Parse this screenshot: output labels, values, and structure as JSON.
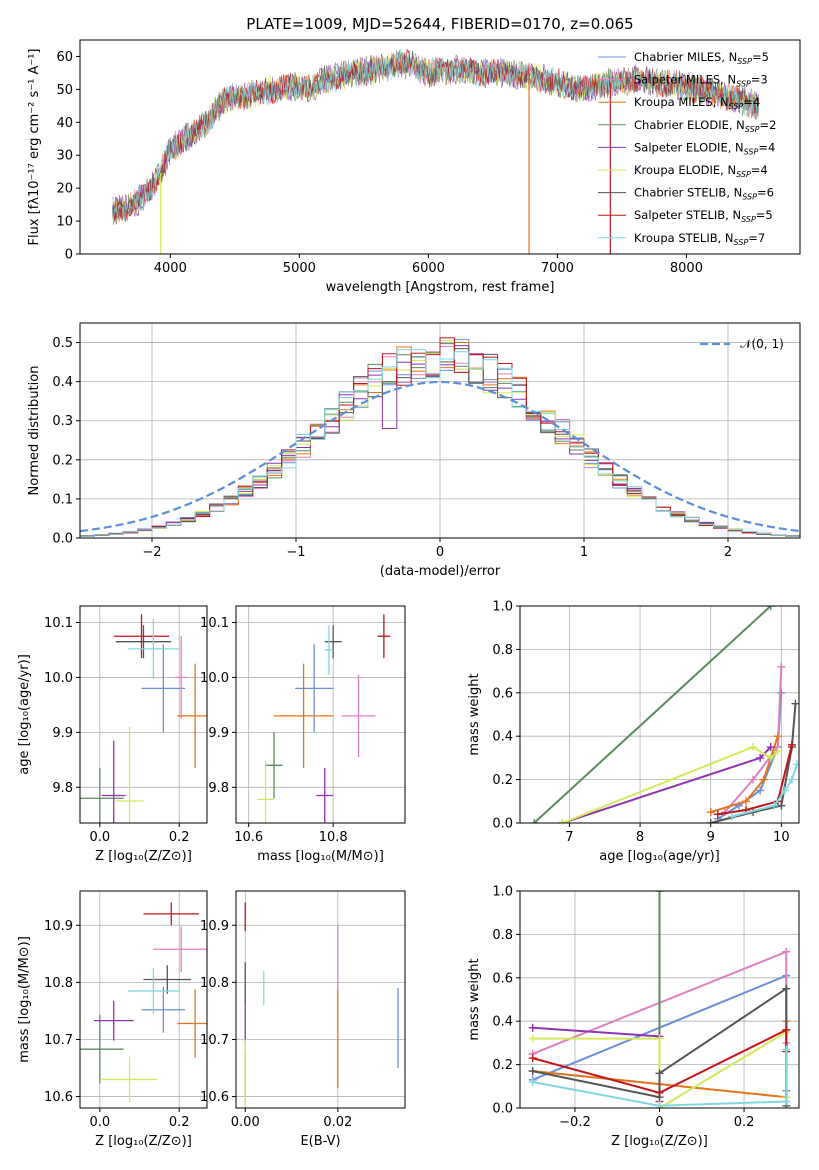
{
  "figure_title": "PLATE=1009, MJD=52644, FIBERID=0170, z=0.065",
  "colors": {
    "Chabrier MILES": "#6a8fd8",
    "Salpeter MILES": "#e07fbf",
    "Kroupa MILES": "#e6741c",
    "Chabrier ELODIE": "#5c8a5c",
    "Salpeter ELODIE": "#9033b0",
    "Kroupa ELODIE": "#d2ea5a",
    "Chabrier STELIB": "#555555",
    "Salpeter STELIB": "#c0161b",
    "Kroupa STELIB": "#7fd8e0",
    "grid": "#b0b0b0",
    "normal_curve": "#5b8fd8"
  },
  "chart_data": [
    {
      "type": "line",
      "title": "PLATE=1009, MJD=52644, FIBERID=0170, z=0.065",
      "xlabel": "wavelength [Angstrom, rest frame]",
      "ylabel": "Flux [fλ10⁻¹⁷ erg cm⁻² s⁻¹ A⁻¹]",
      "xlim": [
        3300,
        8880
      ],
      "ylim": [
        0,
        65
      ],
      "xticks": [
        4000,
        5000,
        6000,
        7000,
        8000
      ],
      "yticks": [
        0,
        10,
        20,
        30,
        40,
        50,
        60
      ],
      "grid": false,
      "legend_position": "top-right",
      "legend": [
        {
          "model": "Chabrier MILES",
          "label": "Chabrier MILES, N",
          "sub": "SSP",
          "val": "=5"
        },
        {
          "model": "Salpeter MILES",
          "label": "Salpeter MILES, N",
          "sub": "SSP",
          "val": "=3"
        },
        {
          "model": "Kroupa MILES",
          "label": "Kroupa MILES, N",
          "sub": "SSP",
          "val": "=4"
        },
        {
          "model": "Chabrier ELODIE",
          "label": "Chabrier ELODIE, N",
          "sub": "SSP",
          "val": "=2"
        },
        {
          "model": "Salpeter ELODIE",
          "label": "Salpeter ELODIE, N",
          "sub": "SSP",
          "val": "=4"
        },
        {
          "model": "Kroupa ELODIE",
          "label": "Kroupa ELODIE, N",
          "sub": "SSP",
          "val": "=4"
        },
        {
          "model": "Chabrier STELIB",
          "label": "Chabrier STELIB, N",
          "sub": "SSP",
          "val": "=6"
        },
        {
          "model": "Salpeter STELIB",
          "label": "Salpeter STELIB, N",
          "sub": "SSP",
          "val": "=5"
        },
        {
          "model": "Kroupa STELIB",
          "label": "Kroupa STELIB, N",
          "sub": "SSP",
          "val": "=7"
        }
      ],
      "continuum": [
        [
          3550,
          13
        ],
        [
          3650,
          14
        ],
        [
          3750,
          16
        ],
        [
          3850,
          20
        ],
        [
          3920,
          24
        ],
        [
          4000,
          32
        ],
        [
          4100,
          35
        ],
        [
          4200,
          37
        ],
        [
          4300,
          41
        ],
        [
          4400,
          46
        ],
        [
          4500,
          48
        ],
        [
          4600,
          48
        ],
        [
          4800,
          50
        ],
        [
          5000,
          51
        ],
        [
          5100,
          50
        ],
        [
          5200,
          53
        ],
        [
          5400,
          55
        ],
        [
          5600,
          56
        ],
        [
          5800,
          58
        ],
        [
          5900,
          57
        ],
        [
          6000,
          55
        ],
        [
          6200,
          56
        ],
        [
          6400,
          55
        ],
        [
          6600,
          55
        ],
        [
          6800,
          54
        ],
        [
          7000,
          52
        ],
        [
          7200,
          50
        ],
        [
          7400,
          52
        ],
        [
          7600,
          53
        ],
        [
          7800,
          52
        ],
        [
          8000,
          51
        ],
        [
          8200,
          49
        ],
        [
          8400,
          47
        ],
        [
          8560,
          45
        ]
      ],
      "spikes": [
        [
          3925,
          0,
          "Kroupa ELODIE"
        ],
        [
          6780,
          0,
          "Kroupa MILES"
        ],
        [
          7410,
          0,
          "Salpeter STELIB"
        ]
      ]
    },
    {
      "type": "bar",
      "xlabel": "(data-model)/error",
      "ylabel": "Normed distribution",
      "xlim": [
        -2.5,
        2.5
      ],
      "ylim": [
        0,
        0.55
      ],
      "xticks": [
        -2,
        -1,
        0,
        1,
        2
      ],
      "yticks": [
        0.0,
        0.1,
        0.2,
        0.3,
        0.4,
        0.5
      ],
      "grid": true,
      "legend_position": "top-right",
      "legend_label": "𝒩(0, 1)",
      "bin_width": 0.1
    },
    {
      "type": "scatter",
      "xlabel": "Z [log₁₀(Z/Z⊙)]",
      "ylabel": "age  [log₁₀(age/yr)]",
      "xlim": [
        -0.05,
        0.27
      ],
      "ylim": [
        9.735,
        10.13
      ],
      "xticks": [
        0.0,
        0.2
      ],
      "yticks": [
        9.8,
        9.9,
        10.0,
        10.1
      ],
      "points": [
        {
          "model": "Chabrier MILES",
          "x": 0.16,
          "y": 9.98,
          "xerr": 0.055,
          "yerr": 0.08
        },
        {
          "model": "Salpeter MILES",
          "x": 0.205,
          "y": 10.0,
          "xerr": 0.015,
          "yerr": 0.075
        },
        {
          "model": "Kroupa MILES",
          "x": 0.24,
          "y": 9.93,
          "xerr": 0.045,
          "yerr": 0.095
        },
        {
          "model": "Chabrier ELODIE",
          "x": 0.0,
          "y": 9.78,
          "xerr": 0.06,
          "yerr": 0.055
        },
        {
          "model": "Salpeter ELODIE",
          "x": 0.035,
          "y": 9.785,
          "xerr": 0.03,
          "yerr": 0.1
        },
        {
          "model": "Kroupa ELODIE",
          "x": 0.075,
          "y": 9.775,
          "xerr": 0.035,
          "yerr": 0.135
        },
        {
          "model": "Chabrier STELIB",
          "x": 0.11,
          "y": 10.065,
          "xerr": 0.07,
          "yerr": 0.03
        },
        {
          "model": "Salpeter STELIB",
          "x": 0.105,
          "y": 10.075,
          "xerr": 0.07,
          "yerr": 0.04
        },
        {
          "model": "Kroupa STELIB",
          "x": 0.135,
          "y": 10.052,
          "xerr": 0.065,
          "yerr": 0.055
        }
      ]
    },
    {
      "type": "scatter",
      "xlabel": "mass [log₁₀(M/M⊙)]",
      "ylabel": "",
      "xlim": [
        10.57,
        10.97
      ],
      "ylim": [
        9.735,
        10.13
      ],
      "xticks": [
        10.6,
        10.8
      ],
      "yticks": [
        9.8,
        9.9,
        10.0,
        10.1
      ],
      "points": [
        {
          "model": "Chabrier MILES",
          "x": 10.755,
          "y": 9.98,
          "xerr": 0.045,
          "yerr": 0.08
        },
        {
          "model": "Salpeter MILES",
          "x": 10.86,
          "y": 9.93,
          "xerr": 0.04,
          "yerr": 0.075
        },
        {
          "model": "Kroupa MILES",
          "x": 10.73,
          "y": 9.93,
          "xerr": 0.07,
          "yerr": 0.095
        },
        {
          "model": "Chabrier ELODIE",
          "x": 10.66,
          "y": 9.84,
          "xerr": 0.02,
          "yerr": 0.06
        },
        {
          "model": "Salpeter ELODIE",
          "x": 10.78,
          "y": 9.785,
          "xerr": 0.02,
          "yerr": 0.05
        },
        {
          "model": "Kroupa ELODIE",
          "x": 10.64,
          "y": 9.778,
          "xerr": 0.02,
          "yerr": 0.07
        },
        {
          "model": "Chabrier STELIB",
          "x": 10.8,
          "y": 10.065,
          "xerr": 0.02,
          "yerr": 0.03
        },
        {
          "model": "Salpeter STELIB",
          "x": 10.92,
          "y": 10.075,
          "xerr": 0.015,
          "yerr": 0.04
        },
        {
          "model": "Kroupa STELIB",
          "x": 10.79,
          "y": 10.05,
          "xerr": 0.01,
          "yerr": 0.045
        }
      ]
    },
    {
      "type": "line",
      "xlabel": "age  [log₁₀(age/yr)]",
      "ylabel": "mass weight",
      "xlim": [
        6.3,
        10.25
      ],
      "ylim": [
        0,
        1.0
      ],
      "xticks": [
        7,
        8,
        9,
        10
      ],
      "yticks": [
        0.0,
        0.2,
        0.4,
        0.6,
        0.8,
        1.0
      ],
      "grid": true,
      "series": [
        {
          "model": "Chabrier MILES",
          "x": [
            9.1,
            9.4,
            9.7,
            9.95,
            10.0
          ],
          "y": [
            0.02,
            0.08,
            0.15,
            0.35,
            0.6
          ]
        },
        {
          "model": "Salpeter MILES",
          "x": [
            9.2,
            9.6,
            9.95,
            10.0
          ],
          "y": [
            0.05,
            0.2,
            0.35,
            0.72
          ]
        },
        {
          "model": "Kroupa MILES",
          "x": [
            9.0,
            9.5,
            9.75,
            9.95
          ],
          "y": [
            0.05,
            0.1,
            0.2,
            0.4
          ]
        },
        {
          "model": "Chabrier ELODIE",
          "x": [
            6.5,
            9.85
          ],
          "y": [
            0.0,
            1.0
          ]
        },
        {
          "model": "Salpeter ELODIE",
          "x": [
            6.9,
            9.7,
            9.85
          ],
          "y": [
            0.0,
            0.3,
            0.35
          ]
        },
        {
          "model": "Kroupa ELODIE",
          "x": [
            6.9,
            9.6,
            9.85,
            9.95
          ],
          "y": [
            0.0,
            0.35,
            0.3,
            0.33
          ]
        },
        {
          "model": "Chabrier STELIB",
          "x": [
            9.0,
            9.6,
            10.0,
            10.15,
            10.2
          ],
          "y": [
            0.0,
            0.05,
            0.08,
            0.35,
            0.55
          ]
        },
        {
          "model": "Salpeter STELIB",
          "x": [
            9.1,
            9.5,
            9.95,
            10.15
          ],
          "y": [
            0.04,
            0.06,
            0.1,
            0.36
          ]
        },
        {
          "model": "Kroupa STELIB",
          "x": [
            9.3,
            9.9,
            10.05,
            10.15,
            10.22
          ],
          "y": [
            0.03,
            0.08,
            0.15,
            0.2,
            0.27
          ]
        }
      ]
    },
    {
      "type": "scatter",
      "xlabel": "Z [log₁₀(Z/Z⊙)]",
      "ylabel": "mass [log₁₀(M/M⊙)]",
      "xlim": [
        -0.05,
        0.27
      ],
      "ylim": [
        10.58,
        10.96
      ],
      "xticks": [
        0.0,
        0.2
      ],
      "yticks": [
        10.6,
        10.7,
        10.8,
        10.9
      ],
      "points": [
        {
          "model": "Chabrier MILES",
          "x": 0.16,
          "y": 10.752,
          "xerr": 0.055,
          "yerr": 0.04
        },
        {
          "model": "Salpeter MILES",
          "x": 0.205,
          "y": 10.858,
          "xerr": 0.07,
          "yerr": 0.04
        },
        {
          "model": "Kroupa MILES",
          "x": 0.24,
          "y": 10.728,
          "xerr": 0.045,
          "yerr": 0.06
        },
        {
          "model": "Chabrier ELODIE",
          "x": 0.0,
          "y": 10.683,
          "xerr": 0.06,
          "yerr": 0.06
        },
        {
          "model": "Salpeter ELODIE",
          "x": 0.035,
          "y": 10.733,
          "xerr": 0.05,
          "yerr": 0.035
        },
        {
          "model": "Kroupa ELODIE",
          "x": 0.075,
          "y": 10.63,
          "xerr": 0.07,
          "yerr": 0.04
        },
        {
          "model": "Chabrier STELIB",
          "x": 0.17,
          "y": 10.805,
          "xerr": 0.06,
          "yerr": 0.025
        },
        {
          "model": "Salpeter STELIB",
          "x": 0.18,
          "y": 10.92,
          "xerr": 0.07,
          "yerr": 0.02
        },
        {
          "model": "Kroupa STELIB",
          "x": 0.135,
          "y": 10.785,
          "xerr": 0.065,
          "yerr": 0.04
        }
      ]
    },
    {
      "type": "scatter",
      "xlabel": "E(B-V)",
      "ylabel": "",
      "xlim": [
        -0.002,
        0.0345
      ],
      "ylim": [
        10.58,
        10.96
      ],
      "xticks": [
        0.0,
        0.02
      ],
      "yticks": [
        10.6,
        10.7,
        10.8,
        10.9
      ],
      "points": [
        {
          "model": "Chabrier MILES",
          "x": 0.033,
          "y": 10.72,
          "yerr": 0.07
        },
        {
          "model": "Salpeter MILES",
          "x": 0.02,
          "y": 10.84,
          "yerr": 0.06
        },
        {
          "model": "Kroupa MILES",
          "x": 0.02,
          "y": 10.7,
          "yerr": 0.085
        },
        {
          "model": "Chabrier ELODIE",
          "x": 0.0,
          "y": 10.64,
          "yerr": 0.04
        },
        {
          "model": "Salpeter ELODIE",
          "x": 0.0,
          "y": 10.73,
          "yerr": 0.04
        },
        {
          "model": "Kroupa ELODIE",
          "x": 0.0,
          "y": 10.63,
          "yerr": 0.07
        },
        {
          "model": "Chabrier STELIB",
          "x": 0.0,
          "y": 10.8,
          "yerr": 0.035
        },
        {
          "model": "Salpeter STELIB",
          "x": 0.0,
          "y": 10.915,
          "yerr": 0.025
        },
        {
          "model": "Kroupa STELIB",
          "x": 0.004,
          "y": 10.79,
          "yerr": 0.03
        }
      ]
    },
    {
      "type": "line",
      "xlabel": "Z [log₁₀(Z/Z⊙)]",
      "ylabel": "mass weight",
      "xlim": [
        -0.33,
        0.33
      ],
      "ylim": [
        0,
        1.0
      ],
      "xticks": [
        -0.2,
        0.0,
        0.2
      ],
      "yticks": [
        0.0,
        0.2,
        0.4,
        0.6,
        0.8,
        1.0
      ],
      "grid": true,
      "series": [
        {
          "model": "Chabrier MILES",
          "x": [
            -0.3,
            0.3,
            0.3
          ],
          "y": [
            0.13,
            0.61,
            0.08
          ]
        },
        {
          "model": "Salpeter MILES",
          "x": [
            -0.3,
            0.3,
            0.3
          ],
          "y": [
            0.25,
            0.72,
            0.3
          ]
        },
        {
          "model": "Kroupa MILES",
          "x": [
            -0.3,
            0.0,
            0.3,
            0.3
          ],
          "y": [
            0.17,
            0.11,
            0.05,
            0.4
          ]
        },
        {
          "model": "Chabrier ELODIE",
          "x": [
            0.0,
            0.0
          ],
          "y": [
            0.0,
            1.0
          ]
        },
        {
          "model": "Salpeter ELODIE",
          "x": [
            -0.3,
            0.0,
            0.0
          ],
          "y": [
            0.37,
            0.33,
            0.03
          ]
        },
        {
          "model": "Kroupa ELODIE",
          "x": [
            -0.3,
            0.0,
            0.0,
            0.3,
            0.3
          ],
          "y": [
            0.32,
            0.32,
            0.0,
            0.35,
            0.05
          ]
        },
        {
          "model": "Chabrier STELIB",
          "x": [
            -0.3,
            0.0,
            0.0,
            0.3,
            0.3
          ],
          "y": [
            0.17,
            0.05,
            0.16,
            0.55,
            0.01
          ]
        },
        {
          "model": "Salpeter STELIB",
          "x": [
            -0.3,
            0.0,
            0.3,
            0.3
          ],
          "y": [
            0.23,
            0.07,
            0.36,
            0.26
          ]
        },
        {
          "model": "Kroupa STELIB",
          "x": [
            -0.3,
            0.0,
            0.3,
            0.3
          ],
          "y": [
            0.12,
            0.01,
            0.03,
            0.27
          ]
        }
      ]
    }
  ]
}
